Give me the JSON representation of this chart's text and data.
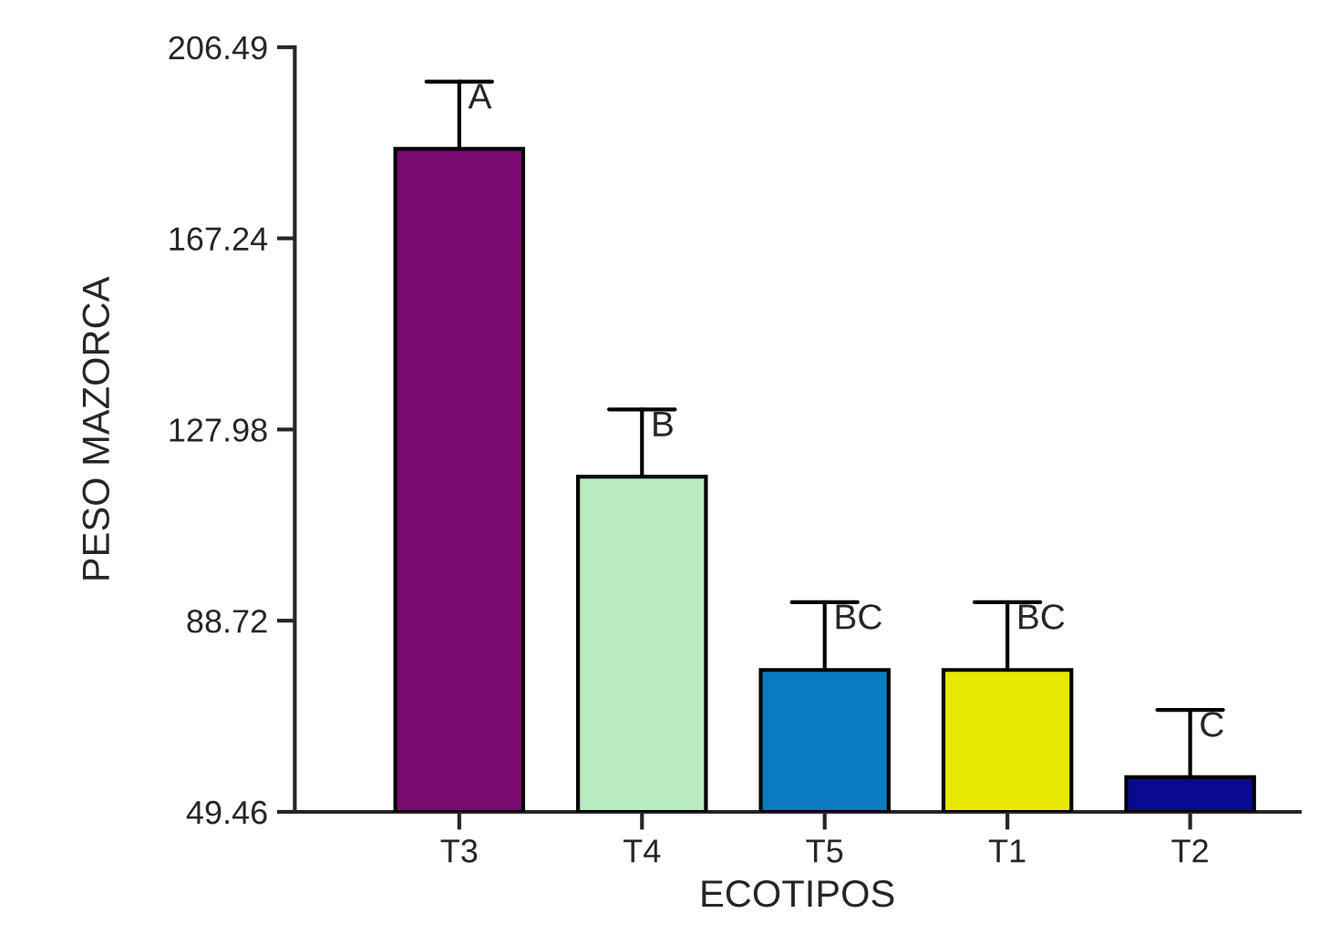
{
  "chart_data": {
    "type": "bar",
    "xlabel": "ECOTIPOS",
    "ylabel": "PESO MAZORCA",
    "categories": [
      "T3",
      "T4",
      "T5",
      "T1",
      "T2"
    ],
    "values": [
      185.6,
      118.3,
      78.6,
      78.6,
      56.6
    ],
    "colors": [
      "#7b0a6f",
      "#b8ecc0",
      "#0a7bc0",
      "#e8e800",
      "#0a0a90"
    ],
    "errors": [
      [
        185.6,
        199.4
      ],
      [
        118.3,
        132.1
      ],
      [
        78.6,
        92.5
      ],
      [
        78.6,
        92.5
      ],
      [
        56.6,
        70.4
      ]
    ],
    "ylim": [
      49.46,
      206.49
    ],
    "yticks": [
      49.46,
      88.72,
      127.98,
      167.24,
      206.49
    ],
    "grid": false,
    "legend": false,
    "annotations": [
      {
        "text": "A",
        "x": "T3",
        "y": 199.4
      },
      {
        "text": "B",
        "x": "T4",
        "y": 132.1
      },
      {
        "text": "BC",
        "x": "T5",
        "y": 92.5
      },
      {
        "text": "BC",
        "x": "T1",
        "y": 92.5
      },
      {
        "text": "C",
        "x": "T2",
        "y": 70.4
      }
    ]
  }
}
